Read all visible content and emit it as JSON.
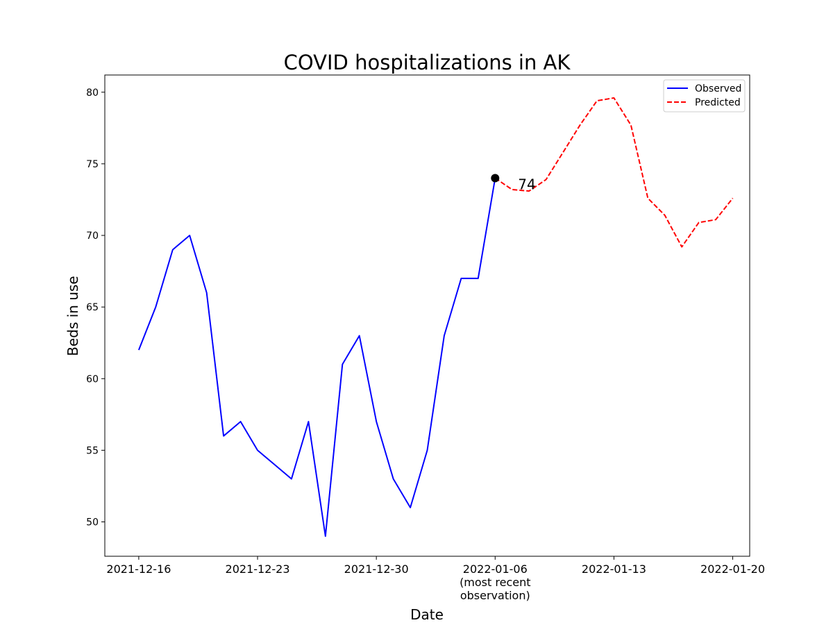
{
  "chart_data": {
    "type": "line",
    "title": "COVID hospitalizations in AK",
    "xlabel": "Date",
    "ylabel": "Beds in use",
    "xlim": [
      "2021-12-14",
      "2022-01-21"
    ],
    "ylim": [
      47.6,
      81.2
    ],
    "x_ticks": [
      "2021-12-16",
      "2021-12-23",
      "2021-12-30",
      "2022-01-06",
      "2022-01-13",
      "2022-01-20"
    ],
    "x_tick_labels": [
      [
        "2021-12-16"
      ],
      [
        "2021-12-23"
      ],
      [
        "2021-12-30"
      ],
      [
        "2022-01-06",
        "(most recent",
        "observation)"
      ],
      [
        "2022-01-13"
      ],
      [
        "2022-01-20"
      ]
    ],
    "y_ticks": [
      50,
      55,
      60,
      65,
      70,
      75,
      80
    ],
    "grid": false,
    "legend_position": "upper right",
    "series": [
      {
        "name": "Observed",
        "color": "#0000ff",
        "style": "solid",
        "x": [
          "2021-12-16",
          "2021-12-17",
          "2021-12-18",
          "2021-12-19",
          "2021-12-20",
          "2021-12-21",
          "2021-12-22",
          "2021-12-23",
          "2021-12-24",
          "2021-12-25",
          "2021-12-26",
          "2021-12-27",
          "2021-12-28",
          "2021-12-29",
          "2021-12-30",
          "2021-12-31",
          "2022-01-01",
          "2022-01-02",
          "2022-01-03",
          "2022-01-04",
          "2022-01-05",
          "2022-01-06"
        ],
        "values": [
          62,
          65,
          69,
          70,
          66,
          56,
          57,
          55,
          54,
          53,
          57,
          49,
          61,
          63,
          57,
          53,
          51,
          55,
          63,
          67,
          67,
          74
        ]
      },
      {
        "name": "Predicted",
        "color": "#ff0000",
        "style": "dashed",
        "x": [
          "2022-01-06",
          "2022-01-07",
          "2022-01-08",
          "2022-01-09",
          "2022-01-10",
          "2022-01-11",
          "2022-01-12",
          "2022-01-13",
          "2022-01-14",
          "2022-01-15",
          "2022-01-16",
          "2022-01-17",
          "2022-01-18",
          "2022-01-19",
          "2022-01-20"
        ],
        "values": [
          74.0,
          73.2,
          73.1,
          73.9,
          75.8,
          77.7,
          79.4,
          79.6,
          77.7,
          72.6,
          71.4,
          69.2,
          70.9,
          71.1,
          72.6
        ]
      }
    ],
    "annotation": {
      "x": "2022-01-06",
      "y": 74,
      "text": "74",
      "marker_color": "#000000"
    }
  }
}
